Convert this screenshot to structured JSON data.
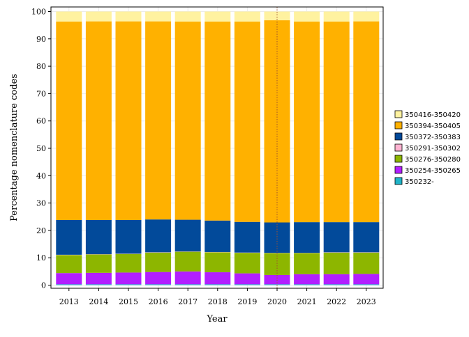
{
  "chart_data": {
    "type": "bar",
    "stacked": true,
    "xlabel": "Year",
    "ylabel": "Percentage nomenclature codes",
    "ylim": [
      0,
      100
    ],
    "yticks": [
      0,
      10,
      20,
      30,
      40,
      50,
      60,
      70,
      80,
      90,
      100
    ],
    "grid": true,
    "legend_position": "right",
    "reference_line": {
      "x": "2020",
      "color": "#a0522d",
      "style": "dotted"
    },
    "categories": [
      "2013",
      "2014",
      "2015",
      "2016",
      "2017",
      "2018",
      "2019",
      "2020",
      "2021",
      "2022",
      "2023"
    ],
    "series": [
      {
        "name": "350232-",
        "color": "#1fb4c8",
        "values": [
          0.3,
          0.3,
          0.3,
          0.3,
          0.3,
          0.3,
          0.3,
          0.3,
          0.3,
          0.3,
          0.3
        ]
      },
      {
        "name": "350254-350265",
        "color": "#b21fff",
        "values": [
          4.1,
          4.2,
          4.3,
          4.5,
          4.7,
          4.4,
          4.0,
          3.4,
          3.7,
          3.7,
          3.8
        ]
      },
      {
        "name": "350276-350280",
        "color": "#8db600",
        "values": [
          6.6,
          6.7,
          6.8,
          7.1,
          7.2,
          7.3,
          7.5,
          8.0,
          7.7,
          7.9,
          7.8
        ]
      },
      {
        "name": "350291-350302",
        "color": "#ffb3d1",
        "values": [
          0.1,
          0.1,
          0.1,
          0.1,
          0.1,
          0.1,
          0.1,
          0.1,
          0.1,
          0.1,
          0.1
        ]
      },
      {
        "name": "350372-350383",
        "color": "#024a9a",
        "values": [
          12.7,
          12.5,
          12.3,
          12.0,
          11.6,
          11.5,
          11.2,
          11.1,
          11.2,
          11.0,
          11.0
        ]
      },
      {
        "name": "350394-350405",
        "color": "#ffb100",
        "values": [
          72.5,
          72.6,
          72.6,
          72.4,
          72.4,
          72.7,
          73.2,
          73.9,
          73.3,
          73.3,
          73.4
        ]
      },
      {
        "name": "350416-350420",
        "color": "#fff2a0",
        "values": [
          3.7,
          3.6,
          3.6,
          3.6,
          3.7,
          3.7,
          3.7,
          3.2,
          3.7,
          3.7,
          3.6
        ]
      }
    ]
  }
}
